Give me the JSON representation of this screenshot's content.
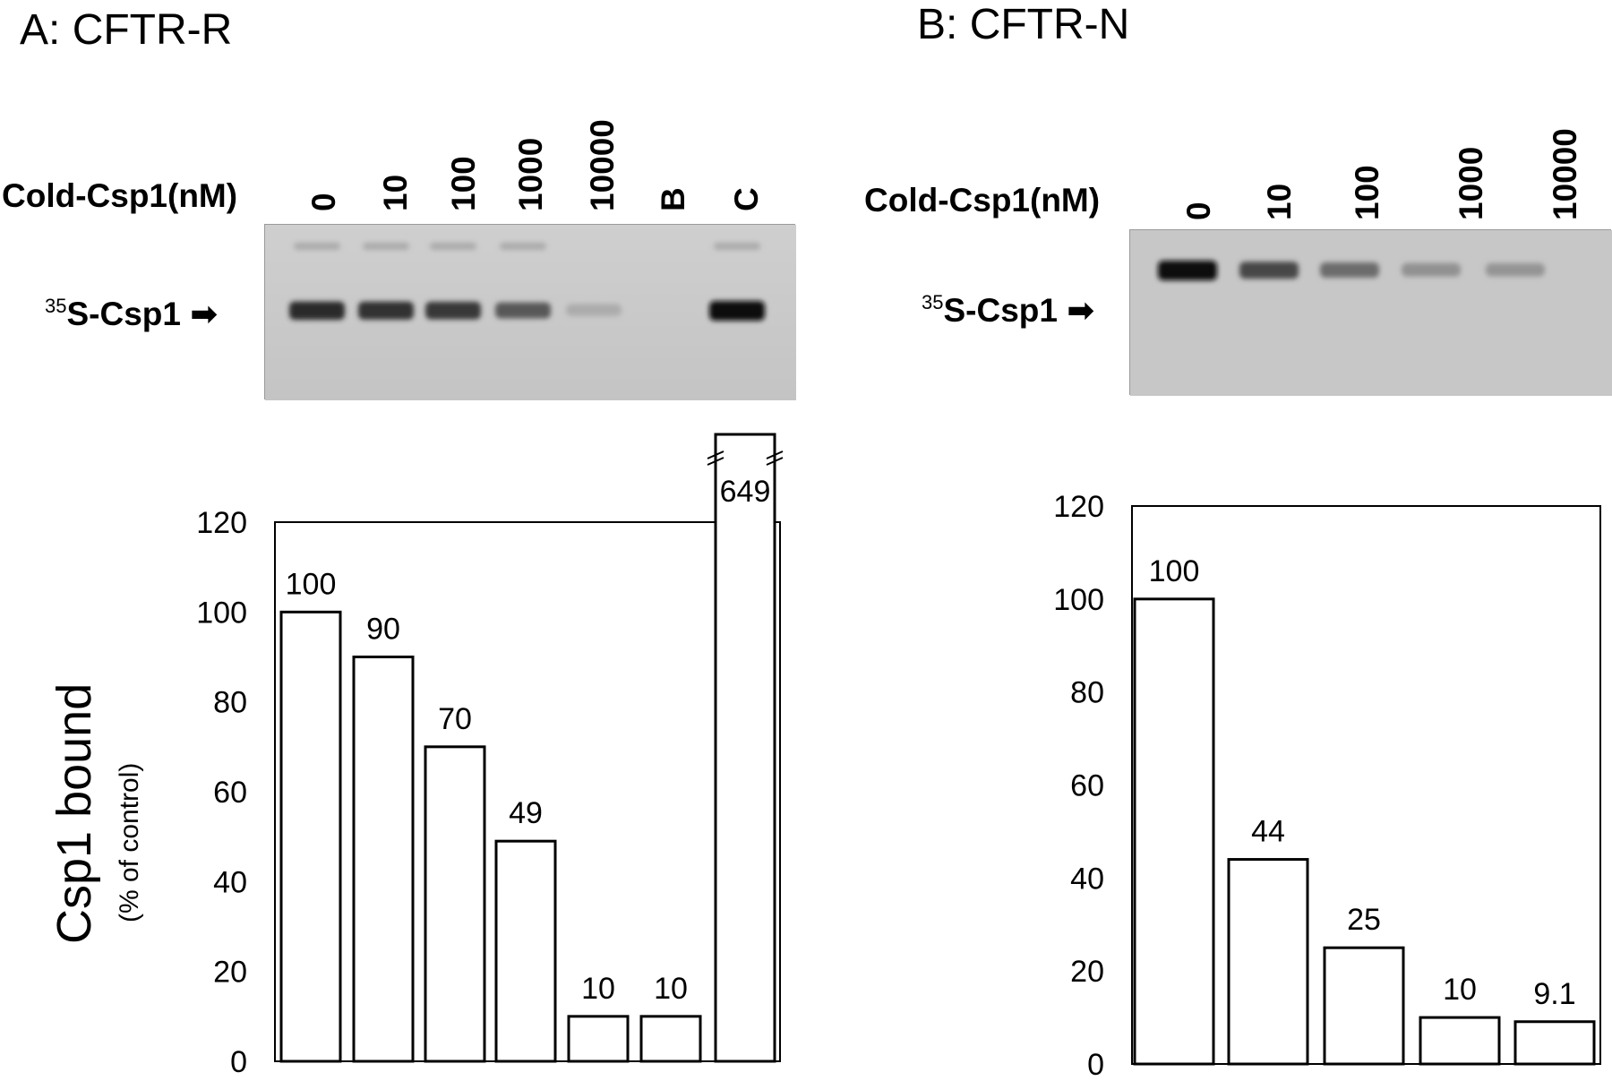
{
  "panels": [
    {
      "title": "A: CFTR-R",
      "lane_header": "Cold-Csp1(nM)",
      "lanes": [
        "0",
        "10",
        "100",
        "1000",
        "10000",
        "B",
        "C"
      ],
      "band_label_super": "35",
      "band_label_main": "S-Csp1",
      "arrow_glyph": "➡",
      "band_intensities": [
        0.85,
        0.82,
        0.78,
        0.6,
        0.15,
        0.0,
        1.0
      ]
    },
    {
      "title": "B: CFTR-N",
      "lane_header": "Cold-Csp1(nM)",
      "lanes": [
        "0",
        "10",
        "100",
        "1000",
        "10000"
      ],
      "band_label_super": "35",
      "band_label_main": "S-Csp1",
      "arrow_glyph": "➡",
      "band_intensities": [
        1.0,
        0.7,
        0.5,
        0.3,
        0.28
      ]
    }
  ],
  "y_axis_title": "Csp1 bound",
  "y_axis_subtitle": "(% of control)",
  "chart_data": [
    {
      "type": "bar",
      "categories": [
        "0",
        "10",
        "100",
        "1000",
        "10000",
        "B",
        "C"
      ],
      "values": [
        100,
        90,
        70,
        49,
        10,
        10,
        649
      ],
      "value_labels": [
        "100",
        "90",
        "70",
        "49",
        "10",
        "10",
        "649"
      ],
      "ylim": [
        0,
        120
      ],
      "yticks": [
        0,
        20,
        40,
        60,
        80,
        100,
        120
      ],
      "axis_break_on": "C",
      "bar_fill": "#ffffff",
      "bar_stroke": "#000000"
    },
    {
      "type": "bar",
      "categories": [
        "0",
        "10",
        "100",
        "1000",
        "10000"
      ],
      "values": [
        100,
        44,
        25,
        10,
        9.1
      ],
      "value_labels": [
        "100",
        "44",
        "25",
        "10",
        "9.1"
      ],
      "ylim": [
        0,
        120
      ],
      "yticks": [
        0,
        20,
        40,
        60,
        80,
        100,
        120
      ],
      "bar_fill": "#ffffff",
      "bar_stroke": "#000000"
    }
  ]
}
